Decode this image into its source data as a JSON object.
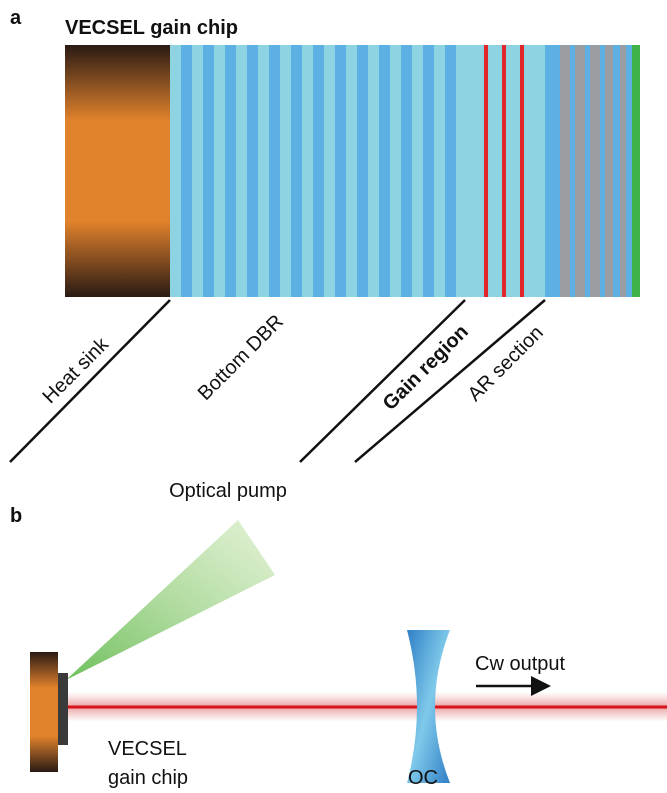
{
  "panel_a": {
    "label": "a",
    "title": "VECSEL gain chip",
    "layers": [
      "Heat sink",
      "Bottom DBR",
      "Gain region",
      "AR section"
    ]
  },
  "panel_b": {
    "label": "b",
    "pump": "Optical pump",
    "output": "Cw output",
    "chip": [
      "VECSEL",
      "gain chip"
    ],
    "coupler": "OC"
  }
}
